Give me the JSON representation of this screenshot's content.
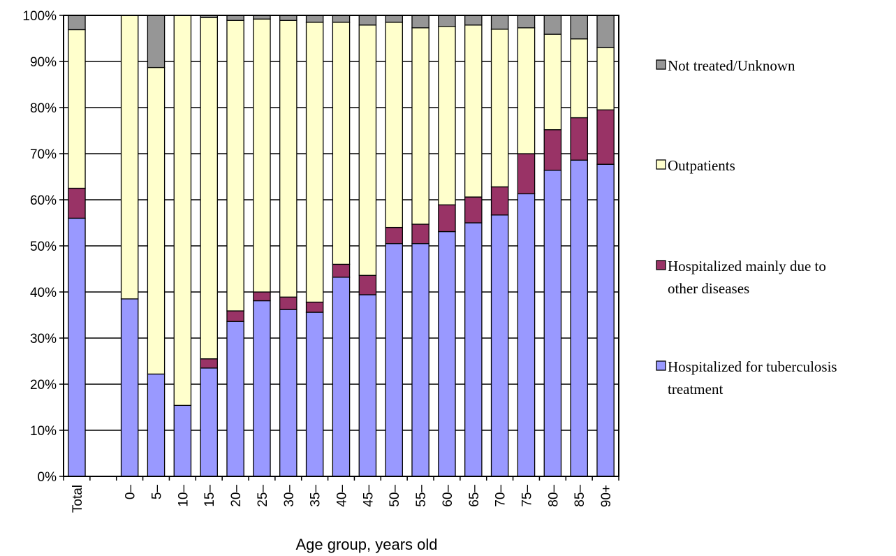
{
  "chart_data": {
    "type": "bar",
    "stacked": true,
    "categories": [
      "Total",
      "",
      "0–",
      "5–",
      "10–",
      "15–",
      "20–",
      "25–",
      "30–",
      "35–",
      "40–",
      "45–",
      "50–",
      "55–",
      "60–",
      "65–",
      "70–",
      "75–",
      "80–",
      "85–",
      "90+"
    ],
    "xlabel": "Age group, years old",
    "ylabel": "",
    "ylim": [
      0,
      100
    ],
    "y_ticks": [
      "0%",
      "10%",
      "20%",
      "30%",
      "40%",
      "50%",
      "60%",
      "70%",
      "80%",
      "90%",
      "100%"
    ],
    "grid": true,
    "legend_position": "right",
    "series": [
      {
        "name": "Hospitalized for tuberculosis treatment",
        "color": "#9999ff",
        "values": [
          56.0,
          null,
          38.5,
          22.2,
          15.4,
          23.5,
          33.6,
          38.1,
          36.2,
          35.6,
          43.2,
          39.4,
          50.5,
          50.5,
          53.1,
          55.0,
          56.7,
          61.3,
          66.4,
          68.6,
          67.7
        ]
      },
      {
        "name": "Hospitalized mainly due to other diseases",
        "color": "#993366",
        "values": [
          6.5,
          null,
          0,
          0,
          0,
          2.0,
          2.3,
          1.9,
          2.7,
          2.2,
          2.8,
          4.2,
          3.5,
          4.2,
          5.8,
          5.6,
          6.1,
          8.7,
          8.8,
          9.2,
          11.8
        ]
      },
      {
        "name": "Outpatients",
        "color": "#ffffcc",
        "values": [
          34.4,
          null,
          61.5,
          66.5,
          84.6,
          74.0,
          63.0,
          59.2,
          60.0,
          60.7,
          52.5,
          54.3,
          44.5,
          42.6,
          38.7,
          37.3,
          34.2,
          27.3,
          20.7,
          17.1,
          13.5
        ]
      },
      {
        "name": "Not treated/Unknown",
        "color": "#969696",
        "values": [
          3.1,
          null,
          0,
          11.3,
          0,
          0.5,
          1.1,
          0.8,
          1.1,
          1.5,
          1.5,
          2.1,
          1.5,
          2.7,
          2.4,
          2.1,
          3.0,
          2.7,
          4.1,
          5.1,
          7.0
        ]
      }
    ],
    "legend_order": [
      "Not treated/Unknown",
      "Outpatients",
      "Hospitalized mainly due to other diseases",
      "Hospitalized for tuberculosis treatment"
    ],
    "legend_lines": {
      "Not treated/Unknown": [
        "Not treated/Unknown"
      ],
      "Outpatients": [
        "Outpatients"
      ],
      "Hospitalized mainly due to other diseases": [
        "Hospitalized mainly due to",
        "other diseases"
      ],
      "Hospitalized for tuberculosis treatment": [
        "Hospitalized for tuberculosis",
        "treatment"
      ]
    }
  }
}
